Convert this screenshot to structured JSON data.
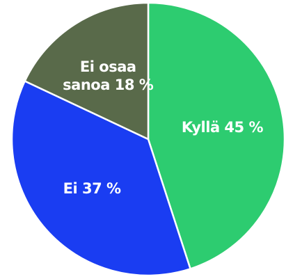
{
  "chart_data": {
    "type": "pie",
    "categories": [
      "Kyllä",
      "Ei",
      "Ei osaa sanoa"
    ],
    "values": [
      45,
      37,
      18
    ],
    "value_labels": [
      "45 %",
      "37 %",
      "18 %"
    ],
    "colors": [
      "#2dcc70",
      "#1a3df2",
      "#596a4a"
    ]
  }
}
